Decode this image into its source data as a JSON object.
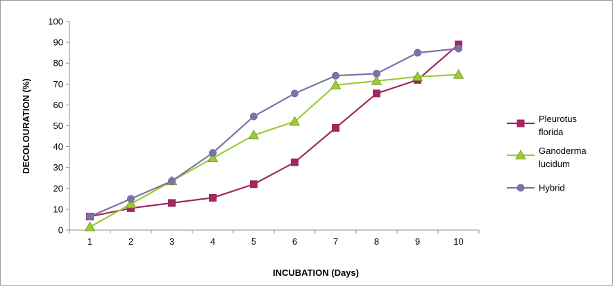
{
  "chart_data": {
    "type": "line",
    "x": [
      1,
      2,
      3,
      4,
      5,
      6,
      7,
      8,
      9,
      10
    ],
    "xlabel": "INCUBATION (Days)",
    "ylabel": "DECOLOURATION (%)",
    "ylim": [
      0,
      100
    ],
    "yticks": [
      0,
      10,
      20,
      30,
      40,
      50,
      60,
      70,
      80,
      90,
      100
    ],
    "grid": false,
    "legend_position": "right",
    "series": [
      {
        "name": "Pleurotus florida",
        "legend_lines": [
          "Pleurotus",
          "florida"
        ],
        "color": "#a0285f",
        "marker": "square",
        "values": [
          6.5,
          10.5,
          13,
          15.5,
          22,
          32.5,
          49,
          65.5,
          72,
          89
        ]
      },
      {
        "name": "Ganoderma lucidum",
        "legend_lines": [
          "Ganoderma",
          "lucidum"
        ],
        "color": "#9acd32",
        "marker": "triangle",
        "values": [
          1.5,
          12.5,
          23.5,
          34.5,
          45.5,
          52,
          69.5,
          71.5,
          73.5,
          74.5
        ]
      },
      {
        "name": "Hybrid",
        "legend_lines": [
          "Hybrid"
        ],
        "color": "#7a73a8",
        "marker": "circle",
        "values": [
          6.5,
          15,
          23.5,
          37,
          54.5,
          65.5,
          74,
          75,
          85,
          87
        ]
      }
    ]
  }
}
